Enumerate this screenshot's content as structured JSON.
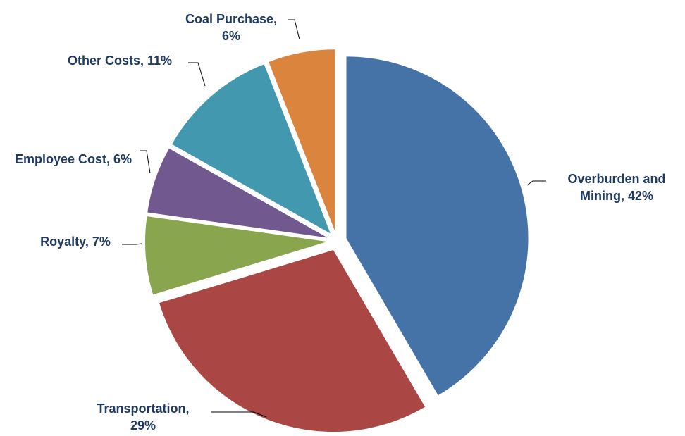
{
  "chart_data": {
    "type": "pie",
    "value_labels": [
      "Overburden and Mining, 42%",
      "Transportation, 29%",
      "Royalty, 7%",
      "Employee Cost, 6%",
      "Other Costs, 11%",
      "Coal Purchase, 6%"
    ],
    "values": [
      42,
      29,
      7,
      6,
      11,
      6
    ],
    "colors": [
      "#4572a7",
      "#aa4643",
      "#89a54e",
      "#71588f",
      "#4198af",
      "#db843d"
    ]
  }
}
